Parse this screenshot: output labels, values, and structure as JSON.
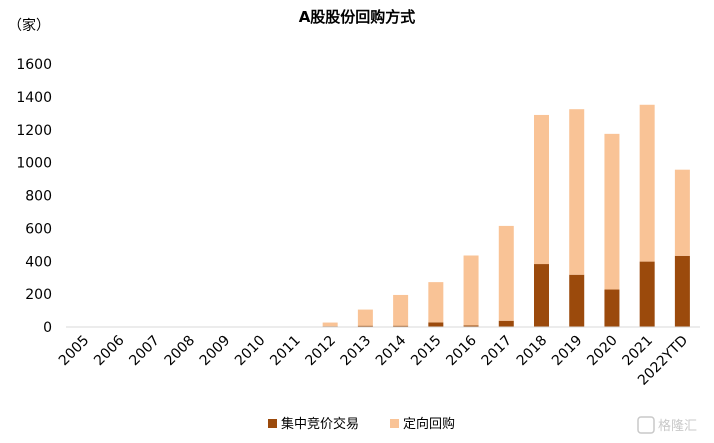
{
  "chart_data": {
    "type": "bar",
    "stacked": true,
    "title": "A股股份回购方式",
    "unit_label": "（家）",
    "categories": [
      "2005",
      "2006",
      "2007",
      "2008",
      "2009",
      "2010",
      "2011",
      "2012",
      "2013",
      "2014",
      "2015",
      "2016",
      "2017",
      "2018",
      "2019",
      "2020",
      "2021",
      "2022YTD"
    ],
    "series": [
      {
        "name": "集中竞价交易",
        "color": "#9b4a0c",
        "values": [
          0,
          0,
          0,
          0,
          0,
          0,
          1,
          5,
          8,
          8,
          28,
          10,
          38,
          383,
          318,
          228,
          398,
          433
        ]
      },
      {
        "name": "定向回购",
        "color": "#f9c396",
        "values": [
          0,
          0,
          0,
          0,
          0,
          0,
          1,
          22,
          98,
          187,
          245,
          425,
          577,
          907,
          1007,
          947,
          954,
          524
        ]
      }
    ],
    "ylim": [
      0,
      1600
    ],
    "yticks": [
      0,
      200,
      400,
      600,
      800,
      1000,
      1200,
      1400,
      1600
    ],
    "grid": false,
    "legend_position": "bottom"
  },
  "watermark": "格隆汇"
}
